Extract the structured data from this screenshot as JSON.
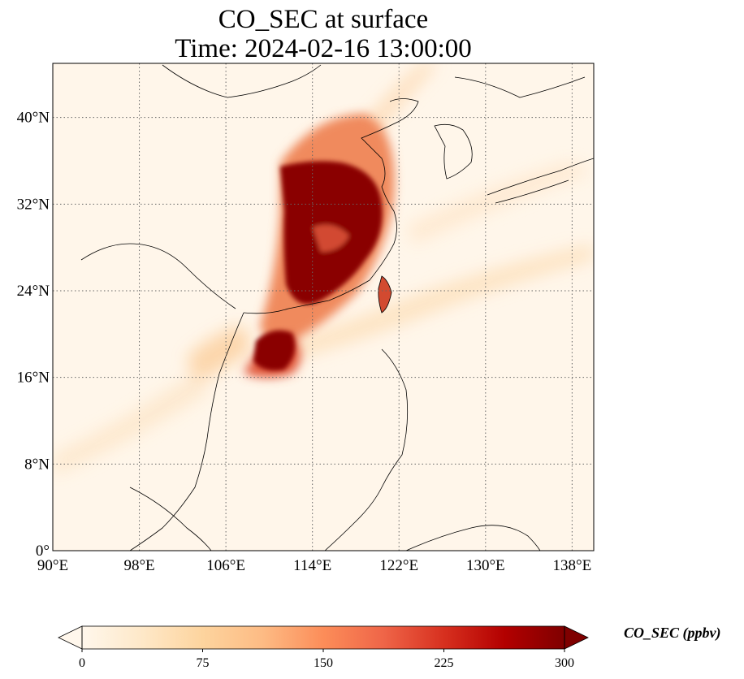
{
  "title": {
    "line1": "CO_SEC at surface",
    "line2": "Time: 2024-02-16 13:00:00"
  },
  "map": {
    "lon_range": [
      90,
      140
    ],
    "lat_range": [
      0,
      45
    ],
    "x_ticks": [
      "90°E",
      "98°E",
      "106°E",
      "114°E",
      "122°E",
      "130°E",
      "138°E"
    ],
    "y_ticks": [
      "0°",
      "8°N",
      "16°N",
      "24°N",
      "32°N",
      "40°N"
    ],
    "gridlines": true,
    "colormap": "OrRd",
    "ocean_color": "#fff6ea"
  },
  "colorbar": {
    "label": "CO_SEC (ppbv)",
    "ticks": [
      "0",
      "75",
      "150",
      "225",
      "300"
    ],
    "range": [
      0,
      300
    ],
    "extend": "both",
    "colors": [
      "#fff7ec",
      "#fee8c8",
      "#fdd49e",
      "#fdbb84",
      "#fc8d59",
      "#ef6548",
      "#d7301f",
      "#b30000",
      "#7f0000"
    ]
  }
}
